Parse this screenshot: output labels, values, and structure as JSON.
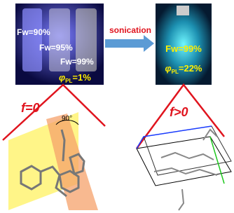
{
  "left_photo": {
    "labels": [
      "Fw=90%",
      "Fw=95%",
      "Fw=99%"
    ],
    "phi": {
      "symbol": "φ",
      "sub": "PL",
      "text": "=1%"
    }
  },
  "arrow": {
    "label": "sonication"
  },
  "right_photo": {
    "label": "Fw=99%",
    "phi": {
      "symbol": "φ",
      "sub": "PL",
      "text": "=22%"
    }
  },
  "left_panel": {
    "f_label": "f=0",
    "angle": "90°"
  },
  "right_panel": {
    "f_label": "f>0"
  }
}
